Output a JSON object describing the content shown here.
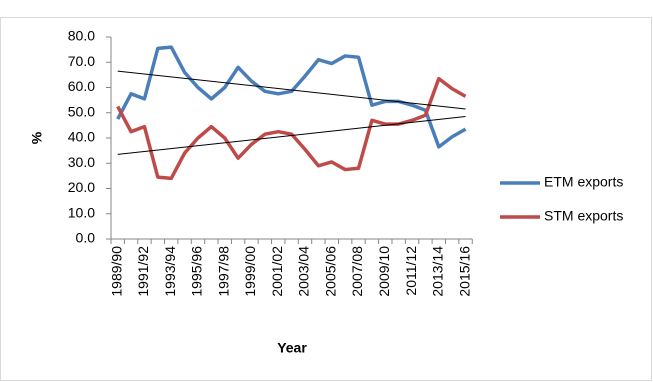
{
  "chart_data": {
    "type": "line",
    "y_label": "%",
    "x_label": "Year",
    "categories": [
      "1989/90",
      null,
      "1991/92",
      null,
      "1993/94",
      null,
      "1995/96",
      null,
      "1997/98",
      null,
      "1999/00",
      null,
      "2001/02",
      null,
      "2003/04",
      null,
      "2005/06",
      null,
      "2007/08",
      null,
      "2009/10",
      null,
      "2011/12",
      null,
      "2013/14",
      null,
      "2015/16"
    ],
    "series": [
      {
        "name": "ETM exports",
        "color": "#4a7ebb",
        "values": [
          47.5,
          57.5,
          55.5,
          75.5,
          76,
          66,
          60,
          55.5,
          60,
          68,
          62.5,
          58.5,
          57.5,
          58.5,
          64.5,
          71,
          69.5,
          72.5,
          72,
          53,
          54.5,
          54.5,
          53,
          51,
          36.5,
          40.5,
          43.5
        ],
        "trend": [
          66.5,
          51.5
        ]
      },
      {
        "name": "STM exports",
        "color": "#be4b48",
        "values": [
          52.5,
          42.5,
          44.5,
          24.5,
          24,
          34,
          40,
          44.5,
          40,
          32,
          37.5,
          41.5,
          42.5,
          41.5,
          35.5,
          29,
          30.5,
          27.5,
          28,
          47,
          45.5,
          45.5,
          47,
          49,
          63.5,
          59.5,
          56.5
        ],
        "trend": [
          33.5,
          48.5
        ]
      }
    ],
    "trend_color": "#000000",
    "ylim": [
      0,
      80
    ],
    "yticks": [
      {
        "value": 0,
        "label": "0.0"
      },
      {
        "value": 10,
        "label": "10.0"
      },
      {
        "value": 20,
        "label": "20.0"
      },
      {
        "value": 30,
        "label": "30.0"
      },
      {
        "value": 40,
        "label": "40.0"
      },
      {
        "value": 50,
        "label": "50.0"
      },
      {
        "value": 60,
        "label": "60.0"
      },
      {
        "value": 70,
        "label": "70.0"
      },
      {
        "value": 80,
        "label": "80.0"
      }
    ],
    "legend": "right"
  }
}
